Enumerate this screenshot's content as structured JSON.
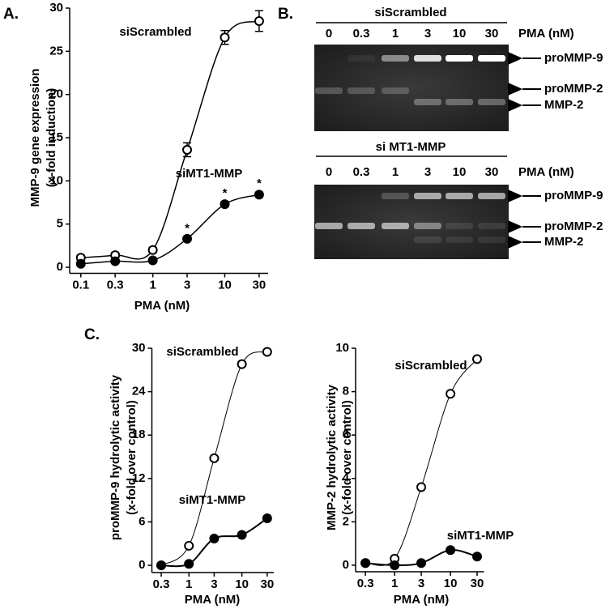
{
  "panel_labels": [
    "A.",
    "B.",
    "C."
  ],
  "chart_data": [
    {
      "type": "line",
      "xscale": "log",
      "ylabel": [
        "MMP-9 gene expression",
        "(x-fold induction)"
      ],
      "xlabel": "PMA (nM)",
      "x": [
        0.1,
        0.3,
        1,
        3,
        10,
        30
      ],
      "xlim": [
        0.07,
        40
      ],
      "xticks": [
        0.1,
        0.3,
        1,
        3,
        10,
        30
      ],
      "ylim": [
        -0.7,
        30
      ],
      "yticks": [
        0,
        5,
        10,
        15,
        20,
        25,
        30
      ],
      "significance_label": "*",
      "series": [
        {
          "name": "siScrambled",
          "color": "#000000",
          "marker": "open",
          "values": [
            1.1,
            1.4,
            2.0,
            13.6,
            26.6,
            28.5
          ],
          "errors": [
            0.3,
            0.3,
            0.3,
            0.8,
            0.8,
            1.2
          ]
        },
        {
          "name": "siMT1-MMP",
          "color": "#000000",
          "marker": "filled",
          "values": [
            0.4,
            0.7,
            0.8,
            3.3,
            7.3,
            8.4
          ],
          "errors": [
            0.2,
            0.2,
            0.2,
            0.2,
            0.3,
            0.3
          ],
          "significant": [
            false,
            false,
            false,
            true,
            true,
            true
          ]
        }
      ]
    },
    {
      "type": "line",
      "xscale": "log",
      "ylabel": [
        "proMMP-9 hydrolytic activity",
        "(x-fold over control)"
      ],
      "xlabel": "PMA (nM)",
      "x": [
        0.3,
        1,
        3,
        10,
        30
      ],
      "xlim": [
        0.2,
        40
      ],
      "xticks": [
        0.3,
        1,
        3,
        10,
        30
      ],
      "ylim": [
        -1,
        30
      ],
      "yticks": [
        0,
        6,
        12,
        18,
        24,
        30
      ],
      "series": [
        {
          "name": "siScrambled",
          "color": "#000000",
          "marker": "open",
          "values": [
            0,
            2.7,
            14.8,
            27.8,
            29.5
          ]
        },
        {
          "name": "siMT1-MMP",
          "color": "#000000",
          "marker": "filled",
          "values": [
            0,
            0.2,
            3.7,
            4.2,
            6.5
          ]
        }
      ]
    },
    {
      "type": "line",
      "xscale": "log",
      "ylabel": [
        "MMP-2 hydrolytic activity",
        "(x-fold over control)"
      ],
      "xlabel": "PMA (nM)",
      "x": [
        0.3,
        1,
        3,
        10,
        30
      ],
      "xlim": [
        0.2,
        40
      ],
      "xticks": [
        0.3,
        1,
        3,
        10,
        30
      ],
      "ylim": [
        -0.3,
        10
      ],
      "yticks": [
        0,
        2,
        4,
        6,
        8,
        10
      ],
      "series": [
        {
          "name": "siScrambled",
          "color": "#000000",
          "marker": "open",
          "values": [
            0.1,
            0.3,
            3.6,
            7.9,
            9.5
          ]
        },
        {
          "name": "siMT1-MMP",
          "color": "#000000",
          "marker": "filled",
          "values": [
            0.1,
            0.0,
            0.1,
            0.7,
            0.4
          ]
        }
      ]
    }
  ],
  "gels": [
    {
      "title": "siScrambled",
      "lanes": [
        "0",
        "0.3",
        "1",
        "3",
        "10",
        "30"
      ],
      "lane_unit": "PMA (nM)",
      "bands": [
        "proMMP-9",
        "proMMP-2",
        "MMP-2"
      ]
    },
    {
      "title": "si MT1-MMP",
      "lanes": [
        "0",
        "0.3",
        "1",
        "3",
        "10",
        "30"
      ],
      "lane_unit": "PMA (nM)",
      "bands": [
        "proMMP-9",
        "proMMP-2",
        "MMP-2"
      ]
    }
  ]
}
